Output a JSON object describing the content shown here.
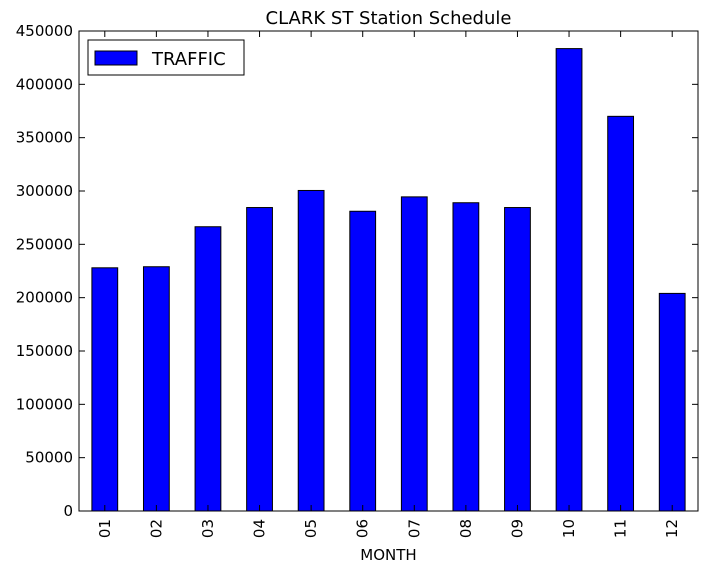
{
  "chart_data": {
    "type": "bar",
    "title": "CLARK ST Station Schedule",
    "xlabel": "MONTH",
    "ylabel": "",
    "categories": [
      "01",
      "02",
      "03",
      "04",
      "05",
      "06",
      "07",
      "08",
      "09",
      "10",
      "11",
      "12"
    ],
    "series": [
      {
        "name": "TRAFFIC",
        "values": [
          228000,
          229000,
          266500,
          284500,
          300500,
          281000,
          294500,
          289000,
          284500,
          433500,
          370000,
          204000
        ],
        "color": "#0000ff"
      }
    ],
    "ylim": [
      0,
      450000
    ],
    "yticks": [
      0,
      50000,
      100000,
      150000,
      200000,
      250000,
      300000,
      350000,
      400000,
      450000
    ],
    "legend": "top-left",
    "grid": false
  }
}
